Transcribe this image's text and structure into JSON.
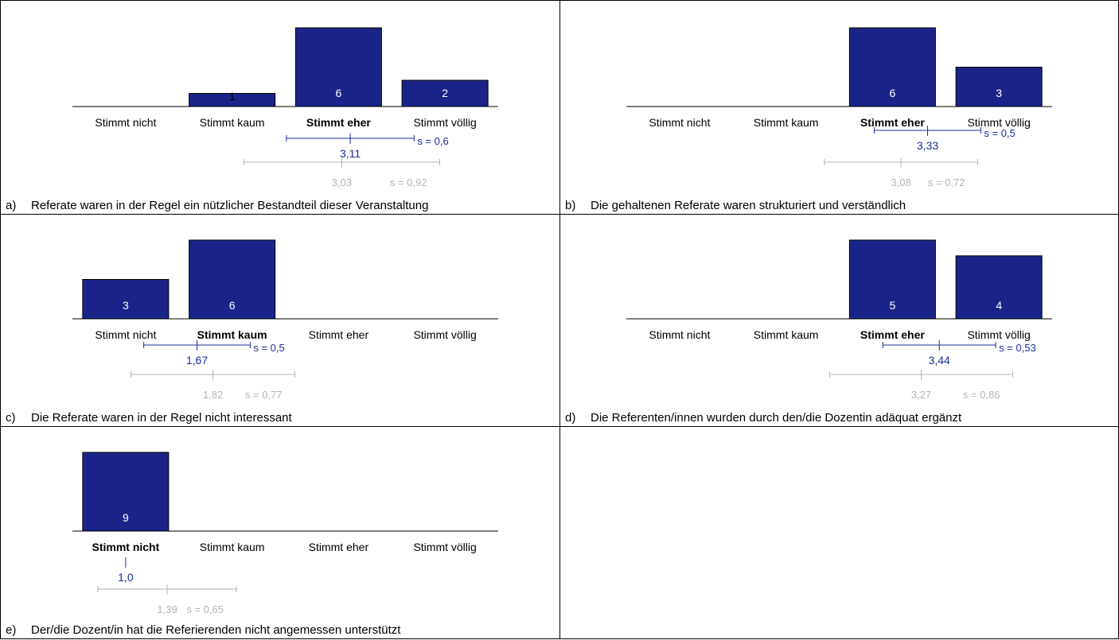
{
  "categories": [
    "Stimmt nicht",
    "Stimmt kaum",
    "Stimmt eher",
    "Stimmt völlig"
  ],
  "colors": {
    "bar": "#1a2488",
    "bar_stroke": "#000000",
    "own_stats": "#1a2d9e",
    "reference_stats": "#b4b4b4",
    "axis": "#000000"
  },
  "chart_data": [
    {
      "type": "bar",
      "letter": "a)",
      "title": "Referate waren in der Regel ein nützlicher Bestandteil dieser Veranstaltung",
      "categories": [
        "Stimmt nicht",
        "Stimmt kaum",
        "Stimmt eher",
        "Stimmt völlig"
      ],
      "values": [
        0,
        1,
        6,
        2
      ],
      "ymax": 6,
      "mode_index": 2,
      "mean": "3,11",
      "s": "s = 0,6",
      "mean_value": 3.11,
      "s_value": 0.6,
      "ref_mean": "3,03",
      "ref_s": "s = 0,92",
      "ref_mean_value": 3.03,
      "ref_s_value": 0.92
    },
    {
      "type": "bar",
      "letter": "b)",
      "title": "Die gehaltenen Referate waren strukturiert und verständlich",
      "categories": [
        "Stimmt nicht",
        "Stimmt kaum",
        "Stimmt eher",
        "Stimmt völlig"
      ],
      "values": [
        0,
        0,
        6,
        3
      ],
      "ymax": 6,
      "mode_index": 2,
      "mean": "3,33",
      "s": "s = 0,5",
      "mean_value": 3.33,
      "s_value": 0.5,
      "ref_mean": "3,08",
      "ref_s": "s = 0,72",
      "ref_mean_value": 3.08,
      "ref_s_value": 0.72
    },
    {
      "type": "bar",
      "letter": "c)",
      "title": "Die Referate waren in der Regel nicht interessant",
      "categories": [
        "Stimmt nicht",
        "Stimmt kaum",
        "Stimmt eher",
        "Stimmt völlig"
      ],
      "values": [
        3,
        6,
        0,
        0
      ],
      "ymax": 6,
      "mode_index": 1,
      "mean": "1,67",
      "s": "s = 0,5",
      "mean_value": 1.67,
      "s_value": 0.5,
      "ref_mean": "1,82",
      "ref_s": "s = 0,77",
      "ref_mean_value": 1.82,
      "ref_s_value": 0.77
    },
    {
      "type": "bar",
      "letter": "d)",
      "title": "Die Referenten/innen wurden durch den/die Dozentin adäquat ergänzt",
      "categories": [
        "Stimmt nicht",
        "Stimmt kaum",
        "Stimmt eher",
        "Stimmt völlig"
      ],
      "values": [
        0,
        0,
        5,
        4
      ],
      "ymax": 5,
      "mode_index": 2,
      "mean": "3,44",
      "s": "s = 0,53",
      "mean_value": 3.44,
      "s_value": 0.53,
      "ref_mean": "3,27",
      "ref_s": "s = 0,86",
      "ref_mean_value": 3.27,
      "ref_s_value": 0.86
    },
    {
      "type": "bar",
      "letter": "e)",
      "title": "Der/die Dozent/in hat die Referierenden nicht angemessen unterstützt",
      "categories": [
        "Stimmt nicht",
        "Stimmt kaum",
        "Stimmt eher",
        "Stimmt völlig"
      ],
      "values": [
        9,
        0,
        0,
        0
      ],
      "ymax": 9,
      "mode_index": 0,
      "mean": "1,0",
      "s": "",
      "mean_value": 1.0,
      "s_value": 0,
      "ref_mean": "1,39",
      "ref_s": "s = 0,65",
      "ref_mean_value": 1.39,
      "ref_s_value": 0.65
    }
  ]
}
